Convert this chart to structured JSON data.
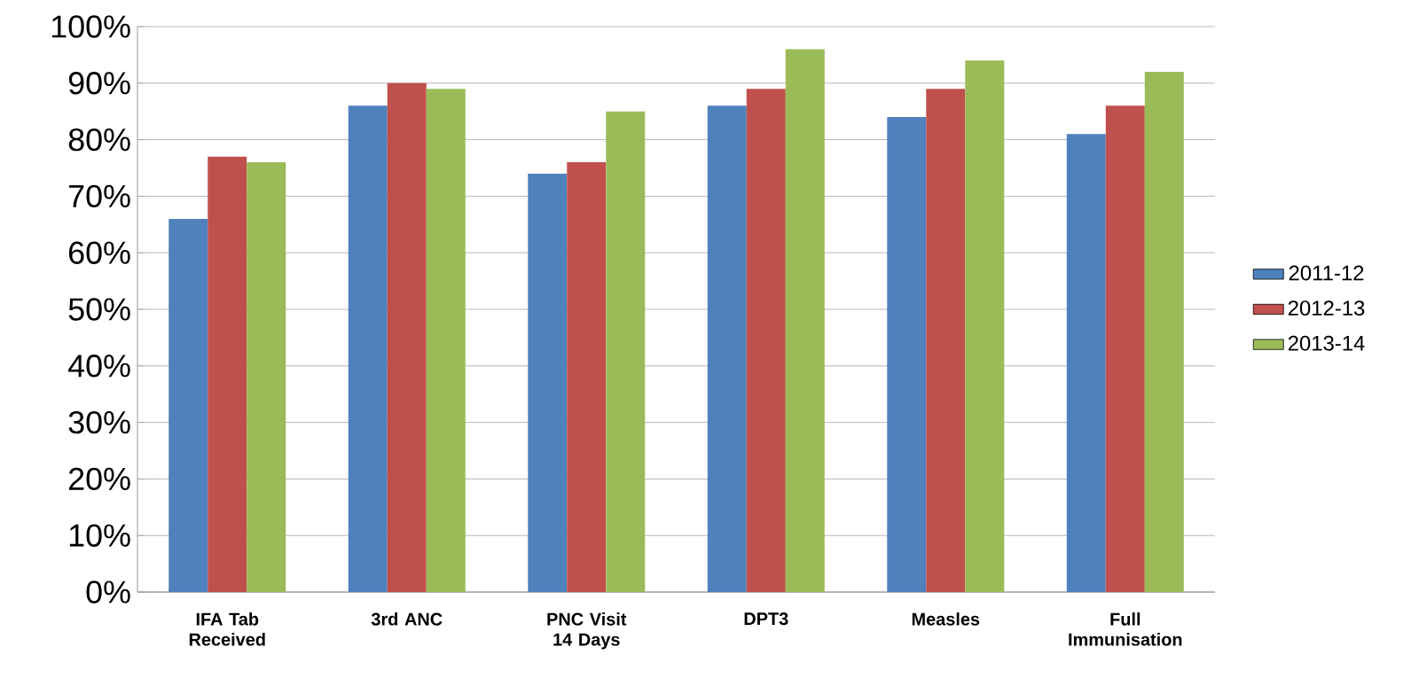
{
  "chart_data": {
    "type": "bar",
    "categories": [
      "IFA Tab Received",
      "3rd ANC",
      "PNC Visit 14 Days",
      "DPT3",
      "Measles",
      "Full Immunisation"
    ],
    "series": [
      {
        "name": "2011-12",
        "color": "#4f81bd",
        "values": [
          66,
          86,
          74,
          86,
          84,
          81
        ]
      },
      {
        "name": "2012-13",
        "color": "#c0504d",
        "values": [
          77,
          90,
          76,
          89,
          89,
          86
        ]
      },
      {
        "name": "2013-14",
        "color": "#9bbb59",
        "values": [
          76,
          89,
          85,
          96,
          94,
          92
        ]
      }
    ],
    "ylim": [
      0,
      100
    ],
    "yticks": [
      {
        "value": 0,
        "label": "0%"
      },
      {
        "value": 10,
        "label": "10%"
      },
      {
        "value": 20,
        "label": "20%"
      },
      {
        "value": 30,
        "label": "30%"
      },
      {
        "value": 40,
        "label": "40%"
      },
      {
        "value": 50,
        "label": "50%"
      },
      {
        "value": 60,
        "label": "60%"
      },
      {
        "value": 70,
        "label": "70%"
      },
      {
        "value": 80,
        "label": "80%"
      },
      {
        "value": 90,
        "label": "90%"
      },
      {
        "value": 100,
        "label": "100%"
      }
    ],
    "grid": "y",
    "legend": "right"
  }
}
